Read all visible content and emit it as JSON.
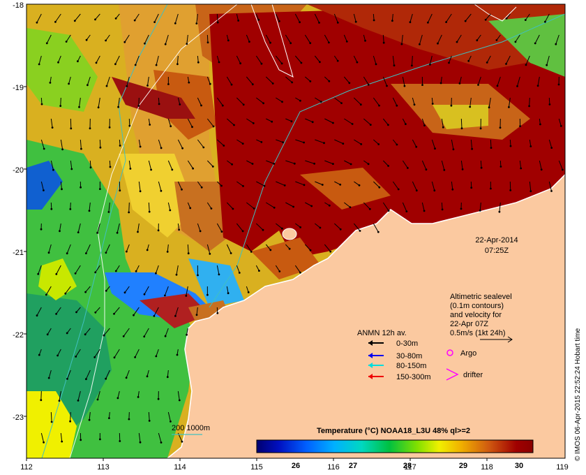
{
  "map": {
    "x_ticks": [
      "112",
      "113",
      "114",
      "115",
      "116",
      "117",
      "118",
      "119"
    ],
    "y_ticks": [
      "-18",
      "-19",
      "-20",
      "-21",
      "-22",
      "-23"
    ],
    "date_line1": "22-Apr-2014",
    "date_line2": "07:25Z",
    "altimetry_lines": [
      "Altimetric sealevel",
      "(0.1m contours)",
      "and velocity for",
      "22-Apr 07Z",
      "0.5m/s (1kt 24h)"
    ],
    "anmn_title": "ANMN 12h av.",
    "anmn_items": [
      {
        "label": "0-30m",
        "color": "#000000"
      },
      {
        "label": "30-80m",
        "color": "#0000ee"
      },
      {
        "label": "80-150m",
        "color": "#00dddd"
      },
      {
        "label": "150-300m",
        "color": "#ee0000"
      }
    ],
    "argo_label": "Argo",
    "drifter_label": "drifter",
    "bathy_label": "200  1000m",
    "colorbar_title": "Temperature (°C) NOAA18_L3U 48% ql>=2",
    "colorbar_ticks": [
      "26",
      "27",
      "28",
      "29",
      "30"
    ],
    "credit": "© IMOS 06-Apr-2015 22:52:24 Hobart time",
    "colors": {
      "land": "#fbc9a0",
      "hot": "#a00000",
      "warm": "#c85a10",
      "coast": "#ffffff",
      "contour": "#40c0c0"
    }
  }
}
